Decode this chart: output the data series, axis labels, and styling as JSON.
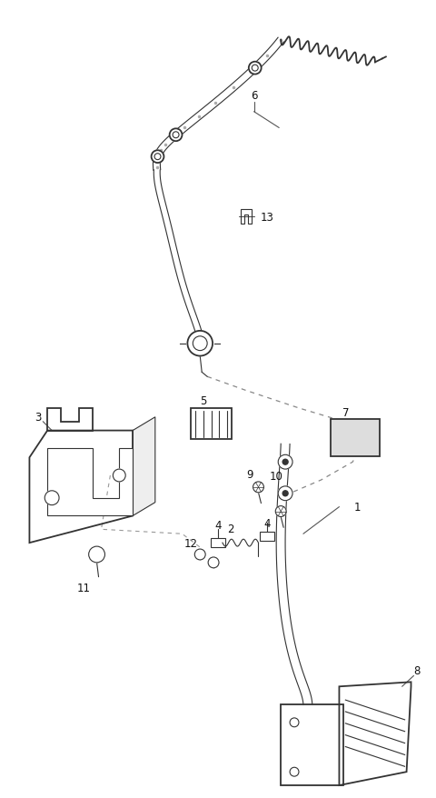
{
  "bg_color": "#ffffff",
  "line_color": "#333333",
  "label_color": "#111111",
  "figsize": [
    4.8,
    8.79
  ],
  "dpi": 100,
  "cable_color": "#444444",
  "spring_color": "#333333",
  "dashed_color": "#666666"
}
